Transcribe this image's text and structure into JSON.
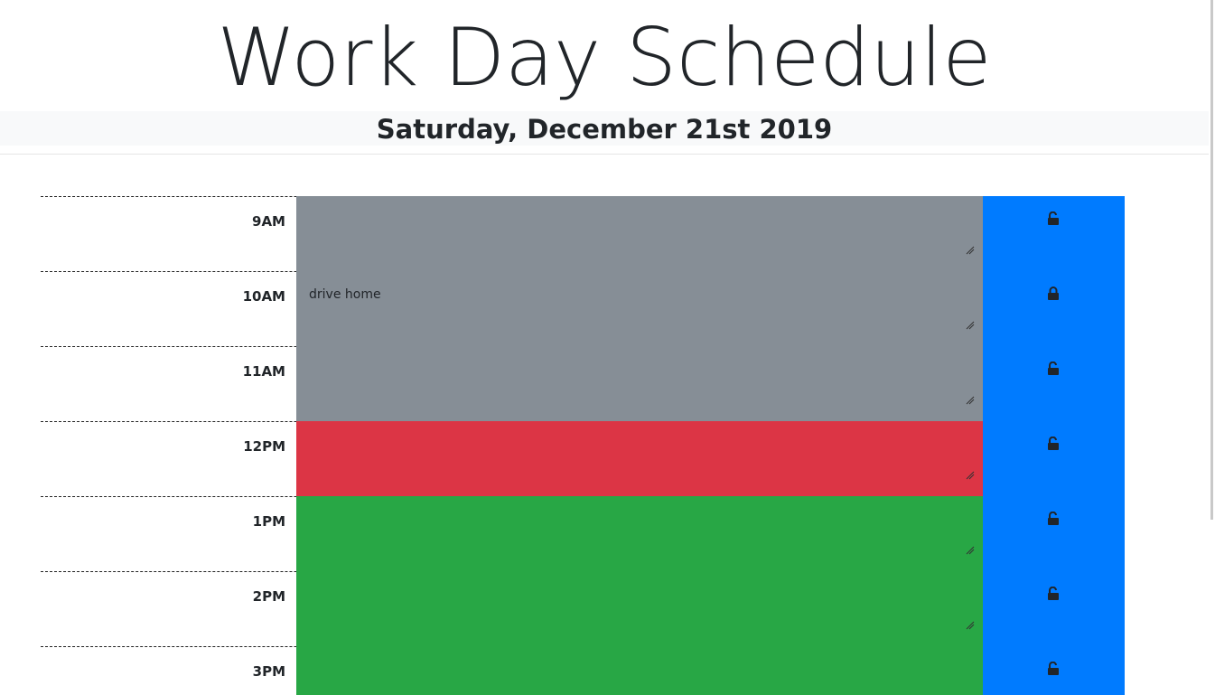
{
  "header": {
    "title": "Work Day Schedule",
    "date": "Saturday, December 21st 2019"
  },
  "colors": {
    "past": "#868e96",
    "present": "#dc3545",
    "future": "#28a745",
    "save_button": "#007bff"
  },
  "hours": [
    {
      "label": "9AM",
      "note": "",
      "state": "past",
      "lock_icon": "unlock-icon"
    },
    {
      "label": "10AM",
      "note": "drive home",
      "state": "past",
      "lock_icon": "lock-icon"
    },
    {
      "label": "11AM",
      "note": "",
      "state": "past",
      "lock_icon": "unlock-icon"
    },
    {
      "label": "12PM",
      "note": "",
      "state": "present",
      "lock_icon": "unlock-icon"
    },
    {
      "label": "1PM",
      "note": "",
      "state": "future",
      "lock_icon": "unlock-icon"
    },
    {
      "label": "2PM",
      "note": "",
      "state": "future",
      "lock_icon": "unlock-icon"
    },
    {
      "label": "3PM",
      "note": "",
      "state": "future",
      "lock_icon": "unlock-icon"
    }
  ]
}
